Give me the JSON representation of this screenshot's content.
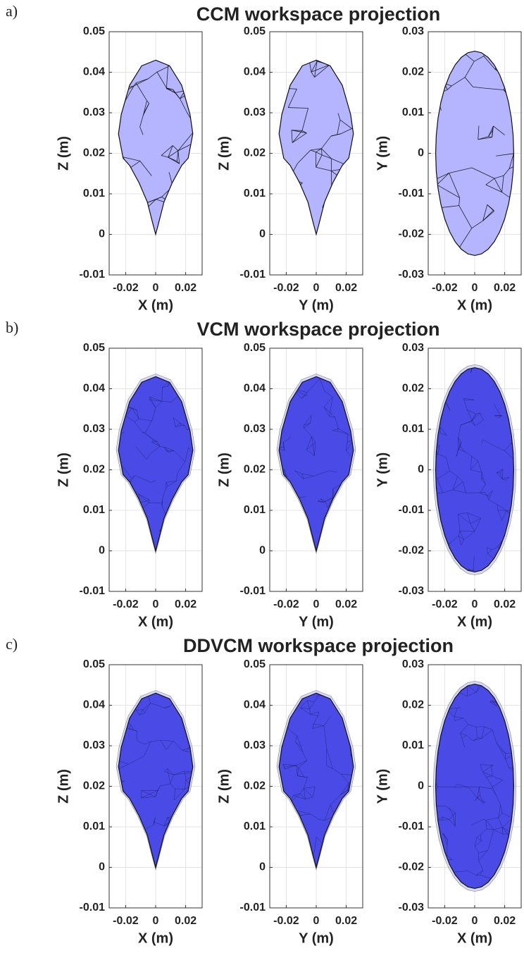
{
  "panels": [
    {
      "label": "a)",
      "title": "CCM workspace projection"
    },
    {
      "label": "b)",
      "title": "VCM workspace projection"
    },
    {
      "label": "c)",
      "title": "DDVCM workspace projection"
    }
  ],
  "chart_data": [
    {
      "type": "mesh",
      "xlabel": "X (m)",
      "ylabel": "Z (m)",
      "xlim": [
        -0.031,
        0.031
      ],
      "ylim": [
        -0.01,
        0.05
      ],
      "xticks": [
        -0.02,
        0,
        0.02
      ],
      "yticks": [
        -0.01,
        0,
        0.01,
        0.02,
        0.03,
        0.04,
        0.05
      ],
      "grid": true,
      "color": "#b4b4ff"
    },
    {
      "type": "mesh",
      "xlabel": "Y (m)",
      "ylabel": "Z (m)",
      "xlim": [
        -0.031,
        0.031
      ],
      "ylim": [
        -0.01,
        0.05
      ],
      "xticks": [
        -0.02,
        0,
        0.02
      ],
      "yticks": [
        -0.01,
        0,
        0.01,
        0.02,
        0.03,
        0.04,
        0.05
      ],
      "grid": true,
      "color": "#b4b4ff"
    },
    {
      "type": "mesh",
      "xlabel": "X (m)",
      "ylabel": "Y (m)",
      "xlim": [
        -0.031,
        0.031
      ],
      "ylim": [
        -0.03,
        0.03
      ],
      "xticks": [
        -0.02,
        0,
        0.02
      ],
      "yticks": [
        -0.03,
        -0.02,
        -0.01,
        0,
        0.01,
        0.02,
        0.03
      ],
      "grid": true,
      "color": "#b4b4ff"
    },
    {
      "type": "mesh",
      "xlabel": "X (m)",
      "ylabel": "Z (m)",
      "xlim": [
        -0.031,
        0.031
      ],
      "ylim": [
        -0.01,
        0.05
      ],
      "xticks": [
        -0.02,
        0,
        0.02
      ],
      "yticks": [
        -0.01,
        0,
        0.01,
        0.02,
        0.03,
        0.04,
        0.05
      ],
      "grid": true,
      "color": "#4a4ae6"
    },
    {
      "type": "mesh",
      "xlabel": "Y (m)",
      "ylabel": "Z (m)",
      "xlim": [
        -0.031,
        0.031
      ],
      "ylim": [
        -0.01,
        0.05
      ],
      "xticks": [
        -0.02,
        0,
        0.02
      ],
      "yticks": [
        -0.01,
        0,
        0.01,
        0.02,
        0.03,
        0.04,
        0.05
      ],
      "grid": true,
      "color": "#4a4ae6"
    },
    {
      "type": "mesh",
      "xlabel": "X (m)",
      "ylabel": "Y (m)",
      "xlim": [
        -0.031,
        0.031
      ],
      "ylim": [
        -0.03,
        0.03
      ],
      "xticks": [
        -0.02,
        0,
        0.02
      ],
      "yticks": [
        -0.03,
        -0.02,
        -0.01,
        0,
        0.01,
        0.02,
        0.03
      ],
      "grid": true,
      "color": "#4a4ae6"
    },
    {
      "type": "mesh",
      "xlabel": "X (m)",
      "ylabel": "Z (m)",
      "xlim": [
        -0.031,
        0.031
      ],
      "ylim": [
        -0.01,
        0.05
      ],
      "xticks": [
        -0.02,
        0,
        0.02
      ],
      "yticks": [
        -0.01,
        0,
        0.01,
        0.02,
        0.03,
        0.04,
        0.05
      ],
      "grid": true,
      "color": "#4a4ae6"
    },
    {
      "type": "mesh",
      "xlabel": "Y (m)",
      "ylabel": "Z (m)",
      "xlim": [
        -0.031,
        0.031
      ],
      "ylim": [
        -0.01,
        0.05
      ],
      "xticks": [
        -0.02,
        0,
        0.02
      ],
      "yticks": [
        -0.01,
        0,
        0.01,
        0.02,
        0.03,
        0.04,
        0.05
      ],
      "grid": true,
      "color": "#4a4ae6"
    },
    {
      "type": "mesh",
      "xlabel": "X (m)",
      "ylabel": "Y (m)",
      "xlim": [
        -0.031,
        0.031
      ],
      "ylim": [
        -0.03,
        0.03
      ],
      "xticks": [
        -0.02,
        0,
        0.02
      ],
      "yticks": [
        -0.03,
        -0.02,
        -0.01,
        0,
        0.01,
        0.02,
        0.03
      ],
      "grid": true,
      "color": "#4a4ae6"
    }
  ]
}
